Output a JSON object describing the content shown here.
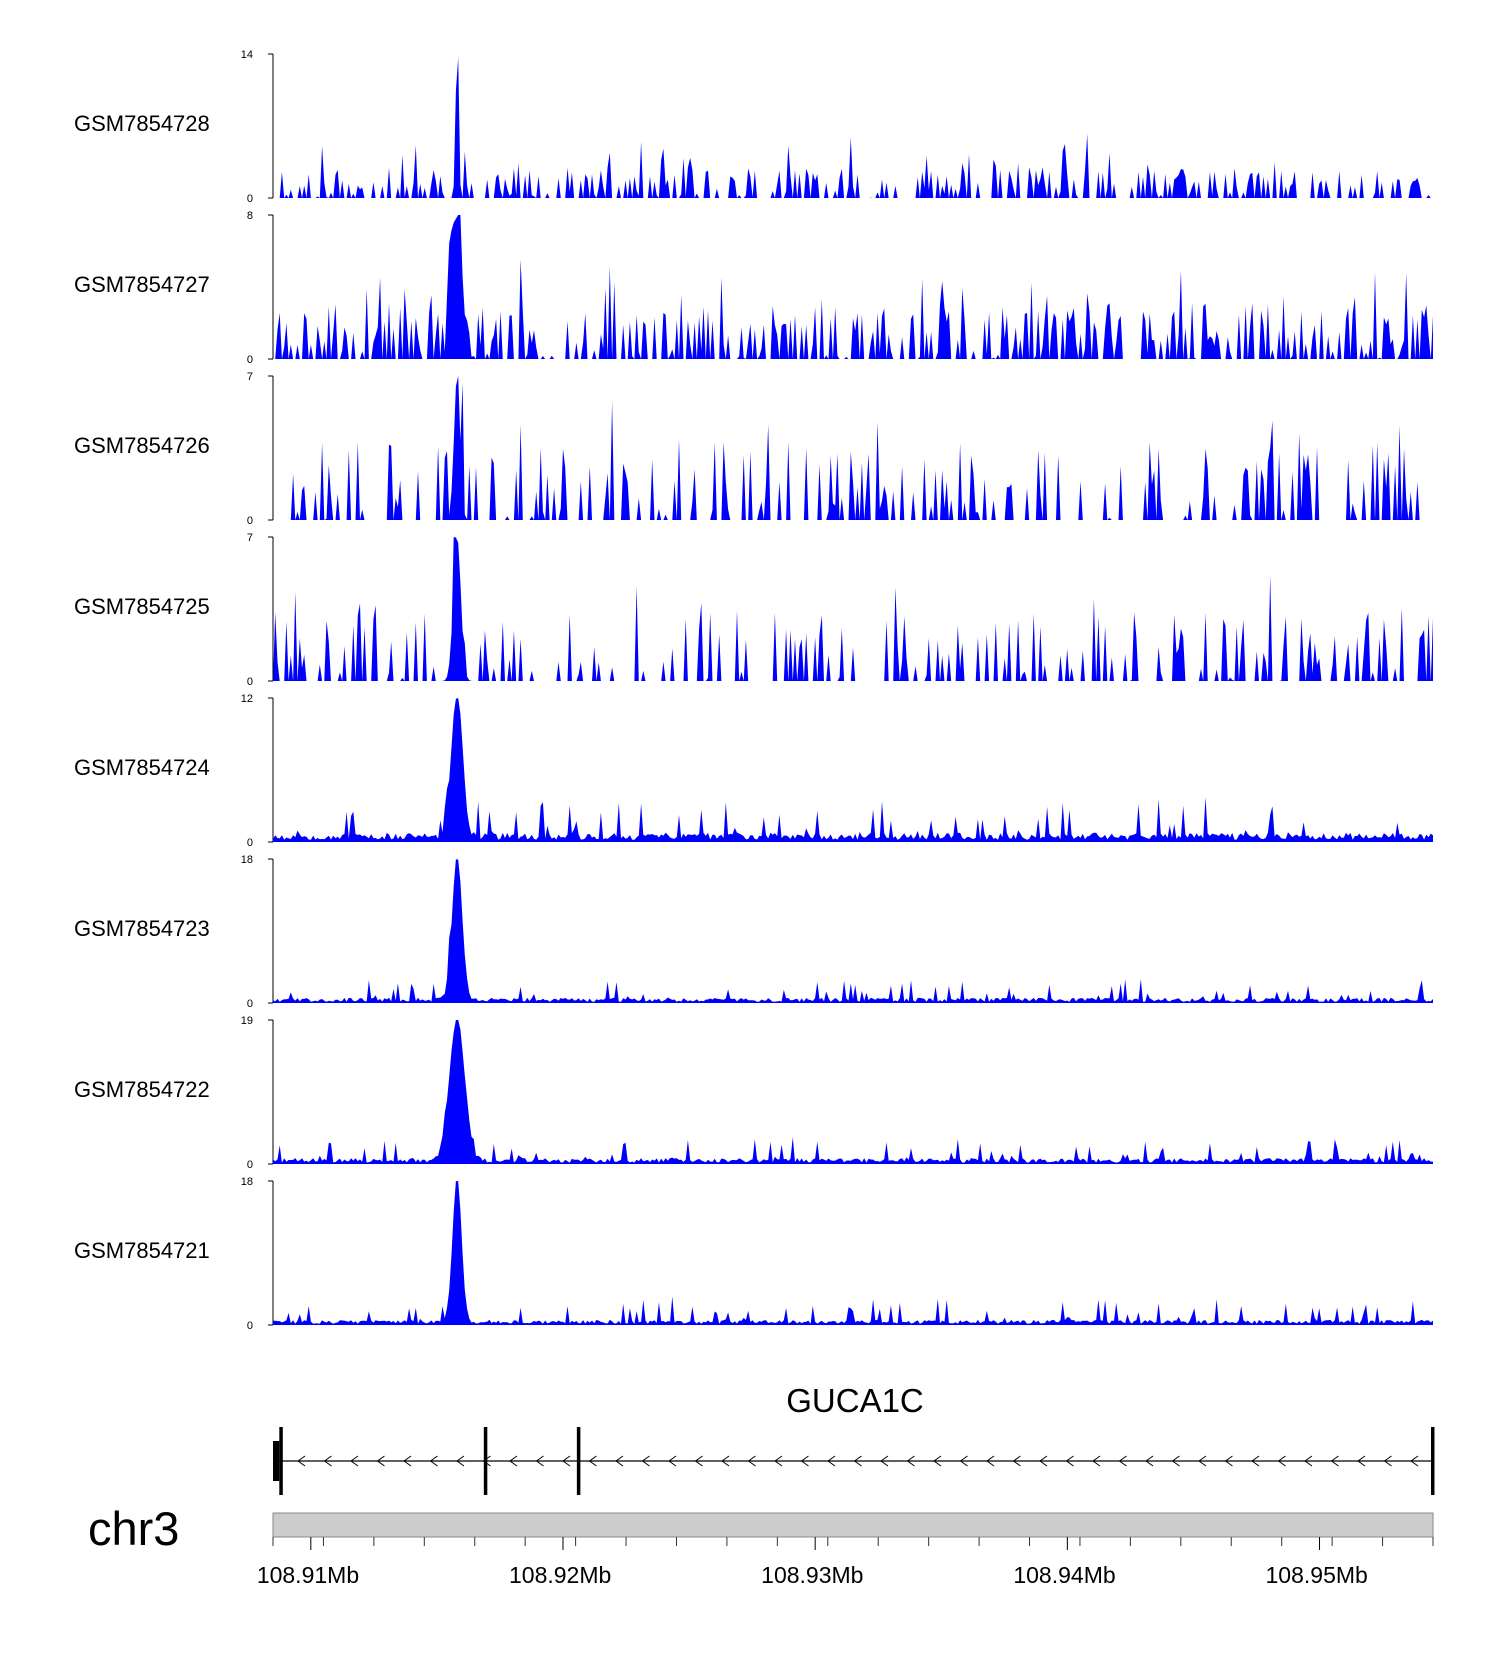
{
  "chart_data": {
    "type": "area",
    "title": "",
    "color": "#0000ff",
    "chromosome": "chr3",
    "x_range_mb": [
      108.9085,
      108.9545
    ],
    "x_ticks_mb": [
      108.91,
      108.92,
      108.93,
      108.94,
      108.95
    ],
    "x_tick_labels": [
      "108.91Mb",
      "108.92Mb",
      "108.93Mb",
      "108.94Mb",
      "108.95Mb"
    ],
    "y_min_label": "0",
    "peak_position_mb": 108.9158,
    "tracks": [
      {
        "name": "GSM7854728",
        "ymax": 14,
        "ymax_label": "14",
        "baseline": 1.5,
        "noise_peak": 6.0,
        "summit": 14,
        "summit_width": 6e-05,
        "profile": "sparse",
        "seed": 11
      },
      {
        "name": "GSM7854727",
        "ymax": 8,
        "ymax_label": "8",
        "baseline": 0.3,
        "noise_peak": 5.2,
        "summit": 8,
        "summit_width": 0.0002,
        "profile": "dense",
        "seed": 23
      },
      {
        "name": "GSM7854726",
        "ymax": 7,
        "ymax_label": "7",
        "baseline": 0.1,
        "noise_peak": 5.5,
        "summit": 7,
        "summit_width": 0.00012,
        "profile": "spiky",
        "seed": 37
      },
      {
        "name": "GSM7854725",
        "ymax": 7,
        "ymax_label": "7",
        "baseline": 0.1,
        "noise_peak": 4.8,
        "summit": 7,
        "summit_width": 0.00015,
        "profile": "spiky",
        "seed": 41
      },
      {
        "name": "GSM7854724",
        "ymax": 12,
        "ymax_label": "12",
        "baseline": 0.6,
        "noise_peak": 3.2,
        "summit": 12,
        "summit_width": 0.00022,
        "profile": "smooth",
        "seed": 53
      },
      {
        "name": "GSM7854723",
        "ymax": 18,
        "ymax_label": "18",
        "baseline": 0.5,
        "noise_peak": 2.6,
        "summit": 18,
        "summit_width": 0.0002,
        "profile": "smooth",
        "seed": 67
      },
      {
        "name": "GSM7854722",
        "ymax": 19,
        "ymax_label": "19",
        "baseline": 0.6,
        "noise_peak": 3.0,
        "summit": 19,
        "summit_width": 0.0003,
        "profile": "smooth",
        "seed": 71
      },
      {
        "name": "GSM7854721",
        "ymax": 18,
        "ymax_label": "18",
        "baseline": 0.5,
        "noise_peak": 3.0,
        "summit": 18,
        "summit_width": 0.00018,
        "profile": "smooth",
        "seed": 83
      }
    ],
    "gene": {
      "name": "GUCA1C",
      "strand": "-",
      "start_mb": 108.9085,
      "end_mb": 108.9545,
      "exons_mb": [
        [
          108.9085,
          108.90875
        ],
        [
          108.90875,
          108.90888
        ],
        [
          108.91686,
          108.91698
        ],
        [
          108.92055,
          108.92063
        ],
        [
          108.95442,
          108.9545
        ]
      ]
    }
  }
}
